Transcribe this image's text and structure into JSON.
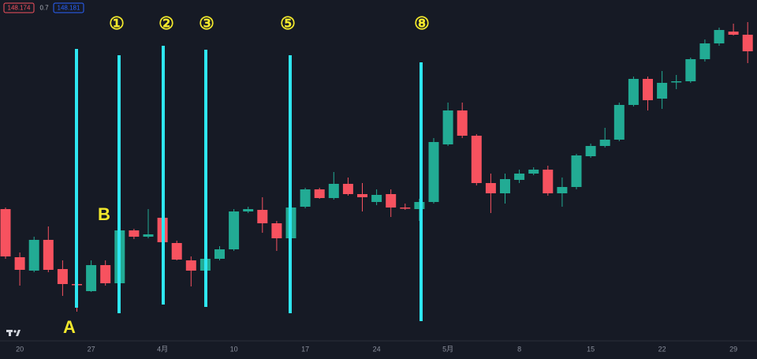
{
  "chart_data": {
    "type": "candlestick",
    "price_tags": [
      "148.174",
      "0.7",
      "148.181"
    ],
    "categories": [
      null,
      "20",
      null,
      null,
      null,
      null,
      "27",
      null,
      null,
      null,
      null,
      "4月",
      null,
      null,
      null,
      null,
      "10",
      null,
      null,
      null,
      null,
      "17",
      null,
      null,
      null,
      null,
      "24",
      null,
      null,
      null,
      null,
      "5月",
      null,
      null,
      null,
      null,
      "8",
      null,
      null,
      null,
      null,
      "15",
      null,
      null,
      null,
      null,
      "22",
      null,
      null,
      null,
      null,
      "29",
      null
    ],
    "open": [
      190,
      129,
      112,
      151,
      114,
      95,
      86,
      119,
      96,
      163,
      155,
      179,
      147,
      125,
      112,
      127,
      139,
      187,
      189,
      172,
      153,
      193,
      215,
      204,
      222,
      209,
      199,
      209,
      192,
      190,
      199,
      272,
      315,
      283,
      223,
      210,
      227,
      235,
      240,
      210,
      218,
      257,
      270,
      278,
      322,
      355,
      330,
      352,
      352,
      380,
      400,
      415,
      411
    ],
    "high": [
      192,
      135,
      155,
      168,
      125,
      100,
      125,
      125,
      165,
      165,
      190,
      185,
      150,
      130,
      130,
      143,
      190,
      193,
      205,
      175,
      195,
      217,
      217,
      237,
      230,
      223,
      215,
      215,
      197,
      203,
      280,
      325,
      325,
      285,
      235,
      235,
      240,
      243,
      245,
      230,
      260,
      273,
      293,
      325,
      358,
      358,
      365,
      360,
      382,
      405,
      420,
      425,
      427
    ],
    "low": [
      127,
      93,
      110,
      110,
      80,
      60,
      85,
      93,
      93,
      152,
      153,
      145,
      125,
      92,
      110,
      125,
      137,
      185,
      160,
      137,
      150,
      191,
      203,
      202,
      207,
      187,
      195,
      180,
      189,
      175,
      197,
      270,
      280,
      220,
      185,
      197,
      223,
      233,
      207,
      193,
      215,
      255,
      268,
      276,
      320,
      315,
      317,
      342,
      350,
      377,
      397,
      410,
      375
    ],
    "close": [
      130,
      113,
      151,
      113,
      95,
      94,
      119,
      96,
      163,
      155,
      158,
      148,
      126,
      112,
      127,
      139,
      187,
      190,
      172,
      153,
      192,
      215,
      204,
      222,
      209,
      205,
      208,
      192,
      191,
      199,
      275,
      315,
      283,
      223,
      210,
      228,
      235,
      240,
      210,
      218,
      258,
      270,
      278,
      322,
      355,
      328,
      350,
      352,
      380,
      400,
      417,
      411,
      390
    ],
    "up_color": "#22ab94",
    "down_color": "#f7525f",
    "ylim": [
      25,
      455
    ],
    "annotations": [
      "①",
      "②",
      "③",
      "⑤",
      "⑧",
      "A",
      "B"
    ]
  }
}
